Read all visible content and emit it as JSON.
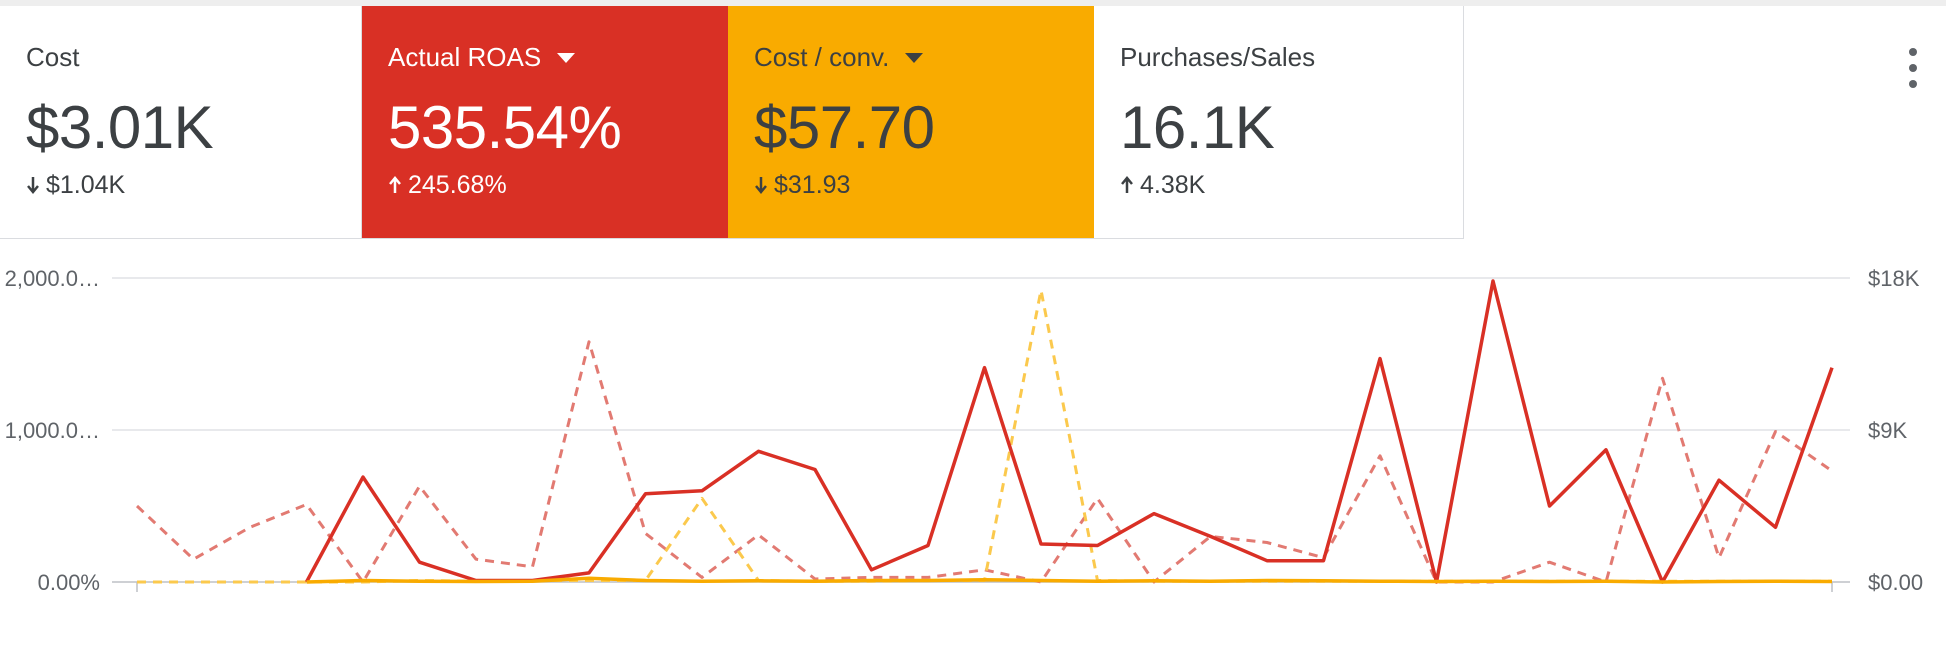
{
  "scorecards": [
    {
      "label": "Cost",
      "value": "$3.01K",
      "delta": "$1.04K",
      "delta_direction": "down",
      "color": "#ffffff",
      "has_dropdown": false
    },
    {
      "label": "Actual ROAS",
      "value": "535.54%",
      "delta": "245.68%",
      "delta_direction": "up",
      "color": "#d93025",
      "has_dropdown": true
    },
    {
      "label": "Cost / conv.",
      "value": "$57.70",
      "delta": "$31.93",
      "delta_direction": "down",
      "color": "#f9ab00",
      "has_dropdown": true
    },
    {
      "label": "Purchases/Sales",
      "value": "16.1K",
      "delta": "4.38K",
      "delta_direction": "up",
      "color": "#ffffff",
      "has_dropdown": false
    }
  ],
  "menu_icon": "more-vert-icon",
  "chart_data": {
    "type": "line",
    "x": [
      1,
      2,
      3,
      4,
      5,
      6,
      7,
      8,
      9,
      10,
      11,
      12,
      13,
      14,
      15,
      16,
      17,
      18,
      19,
      20,
      21,
      22,
      23,
      24,
      25,
      26,
      27,
      28,
      29,
      30,
      31
    ],
    "left_axis": {
      "ticks": [
        "0.00%",
        "1,000.0…",
        "2,000.0…"
      ],
      "range": [
        0,
        2000
      ]
    },
    "right_axis": {
      "ticks": [
        "$0.00",
        "$9K",
        "$18K"
      ],
      "range": [
        0,
        18000
      ]
    },
    "gridlines": true,
    "legend": "none",
    "series": [
      {
        "metric": "Actual ROAS",
        "axis": "left",
        "style": "solid",
        "color": "#d93025",
        "values": [
          null,
          null,
          null,
          0,
          690,
          130,
          10,
          10,
          60,
          580,
          600,
          860,
          740,
          80,
          240,
          1410,
          250,
          240,
          450,
          300,
          140,
          140,
          1470,
          0,
          1980,
          500,
          870,
          0,
          670,
          360,
          1410
        ]
      },
      {
        "metric": "Actual ROAS",
        "axis": "left",
        "style": "dashed",
        "color": "#e27a72",
        "values": [
          500,
          150,
          360,
          510,
          0,
          630,
          150,
          100,
          1580,
          320,
          30,
          310,
          20,
          30,
          30,
          80,
          0,
          550,
          0,
          300,
          260,
          160,
          830,
          0,
          0,
          130,
          0,
          1340,
          160,
          990,
          730
        ]
      },
      {
        "metric": "Cost / conv.",
        "axis": "left",
        "style": "solid",
        "color": "#f9ab00",
        "values": [
          null,
          null,
          null,
          0,
          10,
          5,
          3,
          5,
          25,
          10,
          5,
          8,
          5,
          10,
          10,
          15,
          10,
          5,
          8,
          5,
          10,
          8,
          5,
          3,
          5,
          3,
          5,
          0,
          3,
          5,
          3
        ]
      },
      {
        "metric": "Cost / conv.",
        "axis": "left",
        "style": "dashed",
        "color": "#fbc94d",
        "values": [
          0,
          0,
          0,
          0,
          0,
          10,
          5,
          10,
          10,
          10,
          550,
          10,
          5,
          5,
          10,
          10,
          1920,
          10,
          5,
          5,
          5,
          5,
          5,
          5,
          5,
          5,
          5,
          5,
          5,
          5,
          5
        ]
      }
    ]
  }
}
